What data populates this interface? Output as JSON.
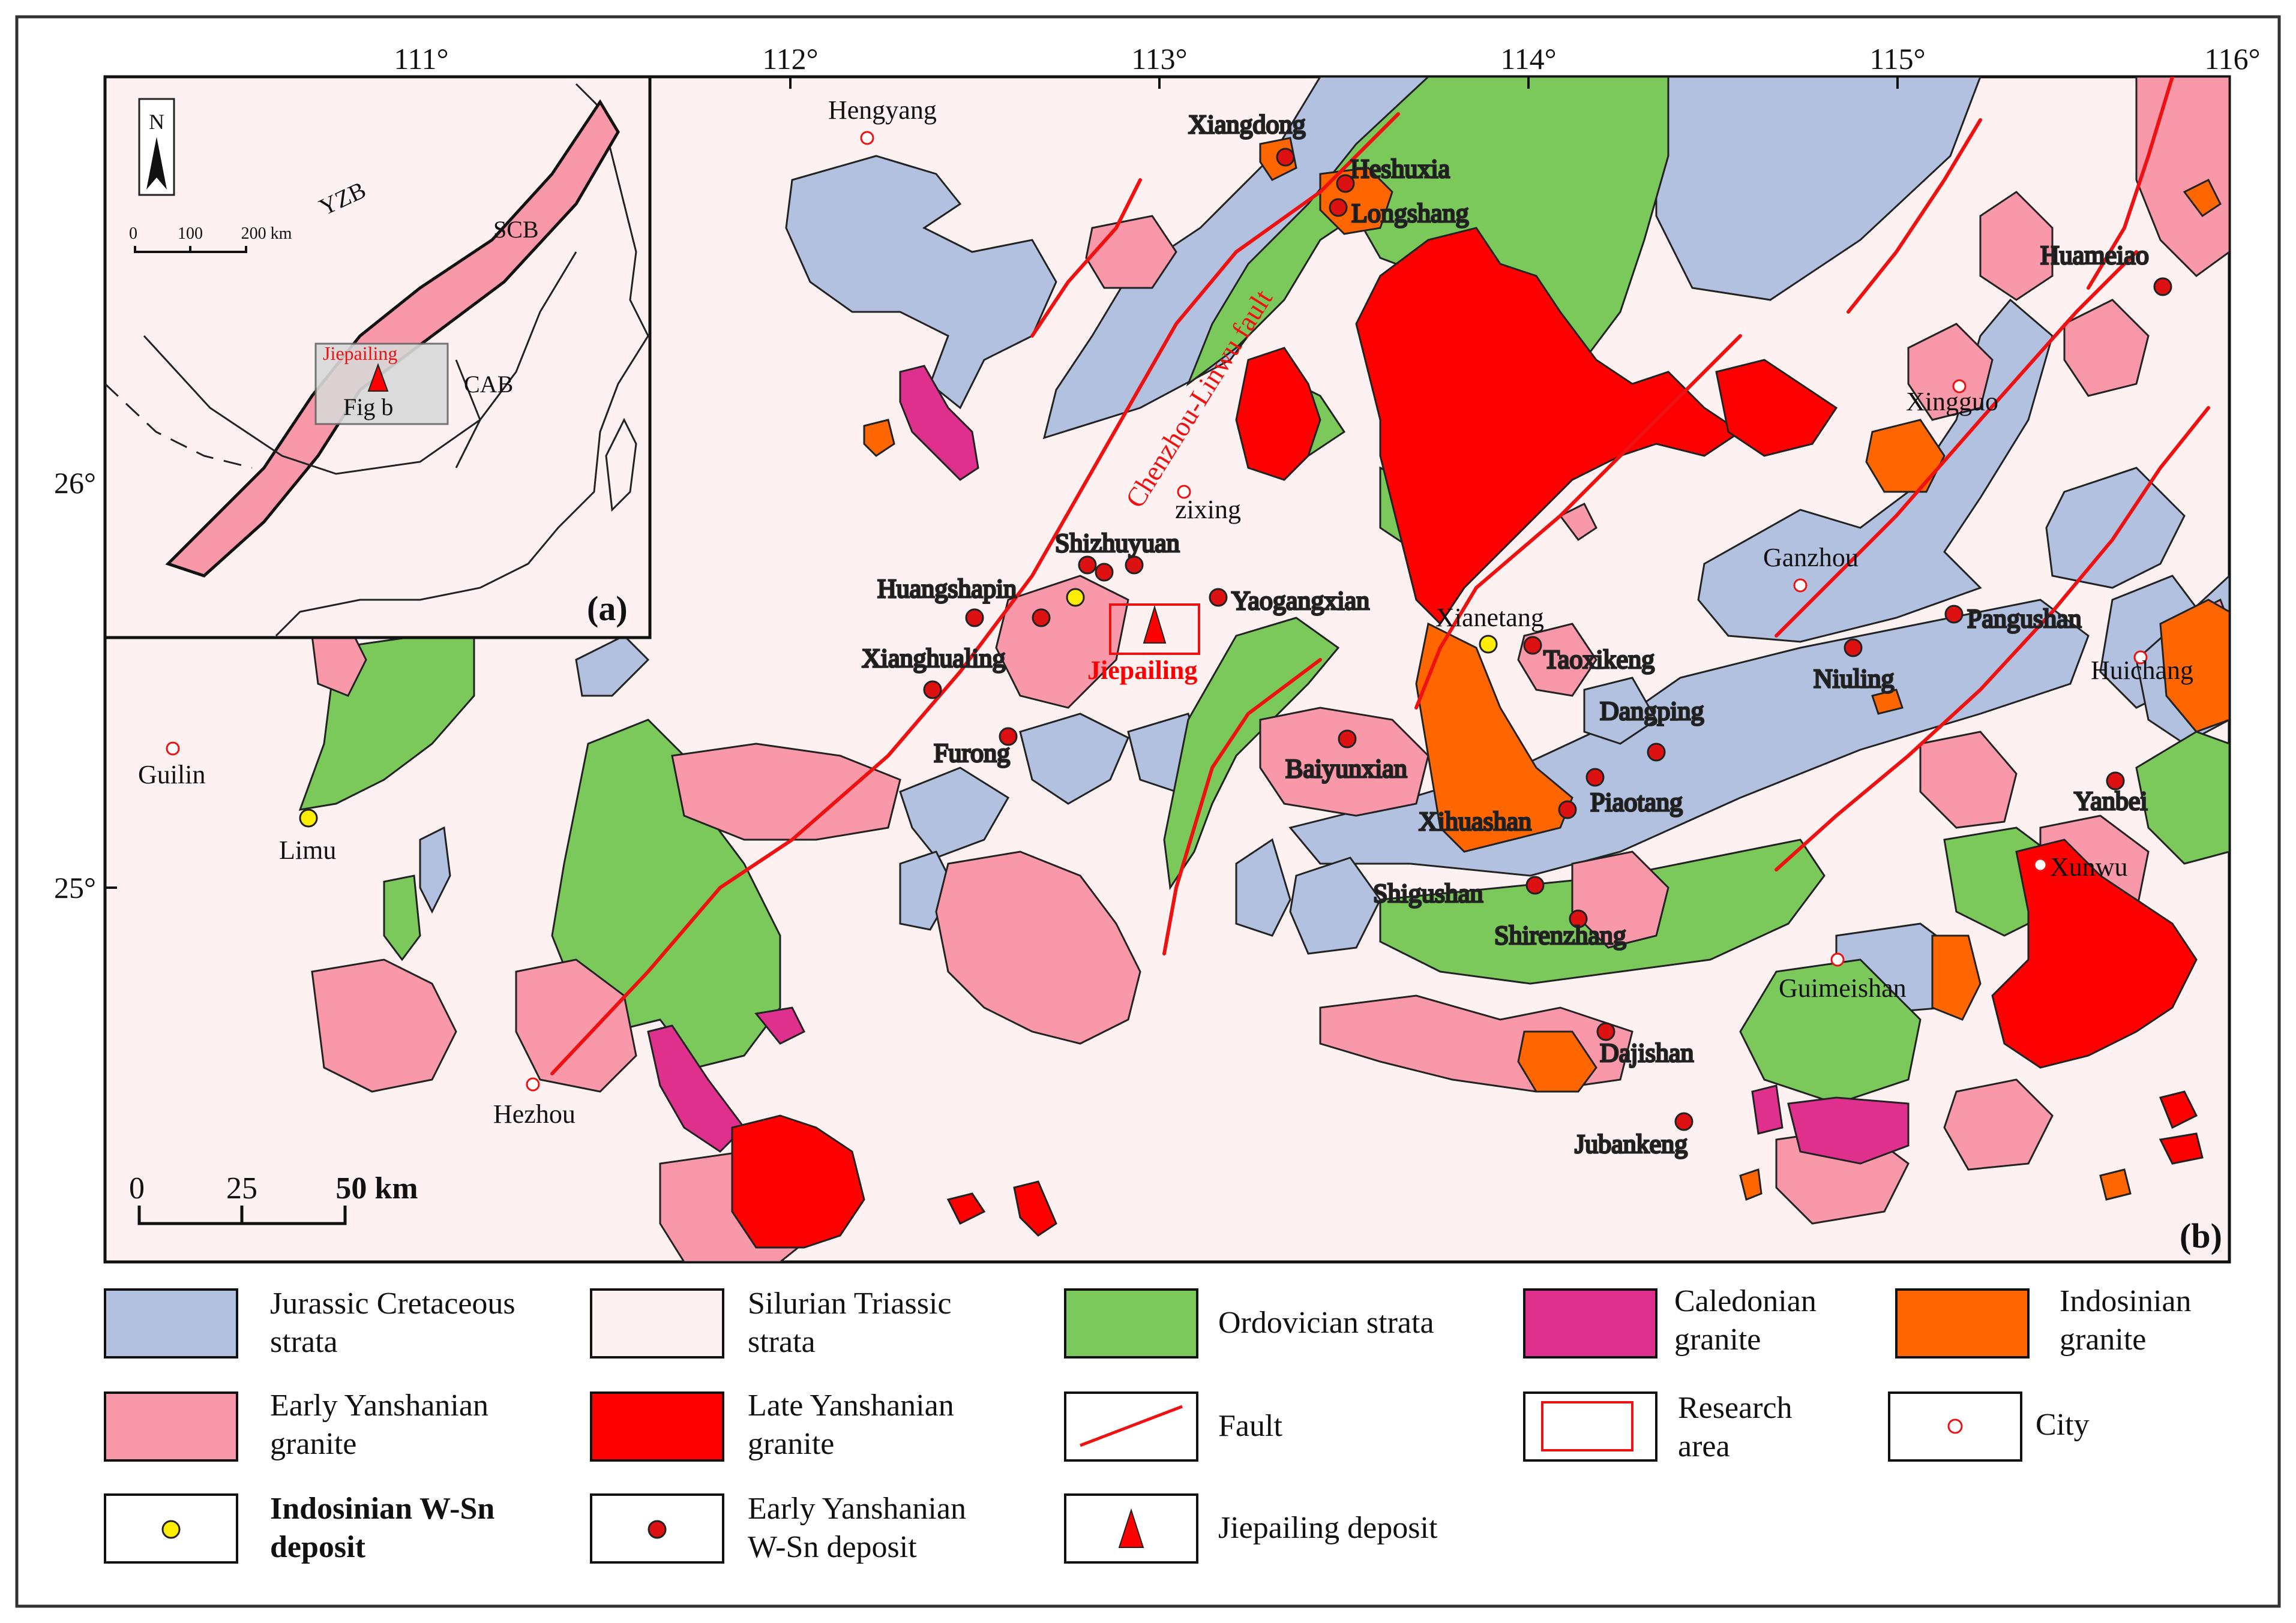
{
  "colors": {
    "background": "#fdf1f1",
    "jurassic_cretaceous": "#b3c1e0",
    "silurian_triassic": "#fdf1f1",
    "ordovician": "#7bc85b",
    "caledonian": "#e0308e",
    "indosinian_granite": "#ff6600",
    "early_yanshanian_granite": "#f998a8",
    "late_yanshanian_granite": "#ff0000",
    "fault": "#ee1111",
    "indosinian_deposit": "#ffee00",
    "early_yanshanian_deposit": "#dd1111"
  },
  "lon_ticks": [
    "111°",
    "112°",
    "113°",
    "114°",
    "115°",
    "116°"
  ],
  "lat_ticks": [
    "26°",
    "25°"
  ],
  "inset": {
    "panel_label": "(a)",
    "north": "N",
    "scale": [
      "0",
      "100",
      "200 km"
    ],
    "zones": [
      "YZB",
      "SCB",
      "CAB"
    ],
    "jiepailing": "Jiepailing",
    "fig_b": "Fig b"
  },
  "main": {
    "panel_label": "(b)",
    "fault_label": "Chenzhou-Linwu fault",
    "scale": [
      "0",
      "25",
      "50 km"
    ],
    "deposit_label": "Jiepailing"
  },
  "cities": [
    "Hengyang",
    "zixing",
    "Guilin",
    "Ganzhou",
    "Xingguo",
    "Huichang",
    "Hezhou",
    "Xunwu",
    "Guimeishan"
  ],
  "indosinian_deposits": [
    "Limu",
    "Xianetang"
  ],
  "yanshanian_deposits": [
    "Xiangdong",
    "Heshuxia",
    "Longshang",
    "Shizhuyuan",
    "Huangshapin",
    "Yaogangxian",
    "Xianghualing",
    "Furong",
    "Taoxikeng",
    "Baiyunxian",
    "Dangping",
    "Piaotang",
    "Xihuashan",
    "Shigushan",
    "Shirenzhang",
    "Dajishan",
    "Jubankeng",
    "Niuling",
    "Pangushan",
    "Huameiao",
    "Yanbei"
  ],
  "legend": [
    {
      "label1": "Jurassic Cretaceous",
      "label2": "strata"
    },
    {
      "label1": "Silurian Triassic",
      "label2": "strata"
    },
    {
      "label1": "Ordovician strata",
      "label2": ""
    },
    {
      "label1": "Caledonian",
      "label2": "granite"
    },
    {
      "label1": "Indosinian",
      "label2": "granite"
    },
    {
      "label1": "Early Yanshanian",
      "label2": "granite"
    },
    {
      "label1": "Late Yanshanian",
      "label2": "granite"
    },
    {
      "label1": "Fault",
      "label2": ""
    },
    {
      "label1": "Research",
      "label2": "area"
    },
    {
      "label1": "City",
      "label2": ""
    },
    {
      "label1": "Indosinian W-Sn",
      "label2": "deposit"
    },
    {
      "label1": "Early Yanshanian",
      "label2": "W-Sn deposit"
    },
    {
      "label1": "Jiepailing deposit",
      "label2": ""
    }
  ]
}
